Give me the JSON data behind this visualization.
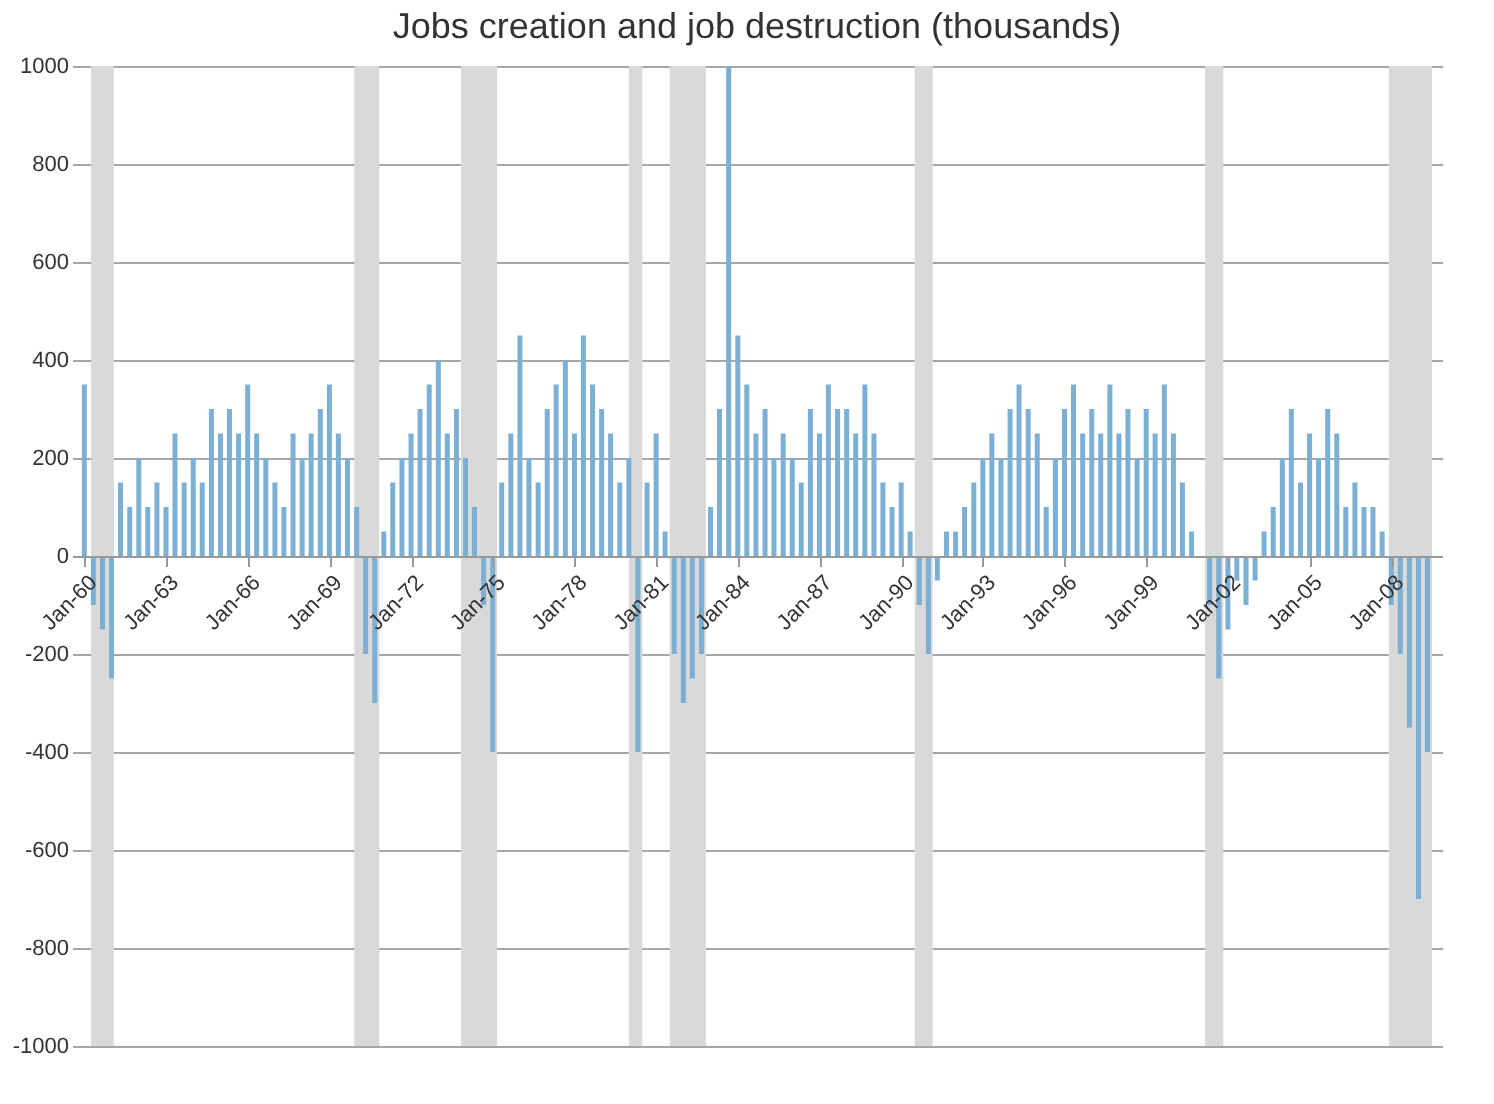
{
  "chart_data": {
    "type": "bar",
    "title": "Jobs creation and job destruction (thousands)",
    "x": [
      "1960-01",
      "1960-05",
      "1960-09",
      "1961-01",
      "1961-05",
      "1961-09",
      "1962-01",
      "1962-05",
      "1962-09",
      "1963-01",
      "1963-05",
      "1963-09",
      "1964-01",
      "1964-05",
      "1964-09",
      "1965-01",
      "1965-05",
      "1965-09",
      "1966-01",
      "1966-05",
      "1966-09",
      "1967-01",
      "1967-05",
      "1967-09",
      "1968-01",
      "1968-05",
      "1968-09",
      "1969-01",
      "1969-05",
      "1969-09",
      "1970-01",
      "1970-05",
      "1970-09",
      "1971-01",
      "1971-05",
      "1971-09",
      "1972-01",
      "1972-05",
      "1972-09",
      "1973-01",
      "1973-05",
      "1973-09",
      "1974-01",
      "1974-05",
      "1974-09",
      "1975-01",
      "1975-05",
      "1975-09",
      "1976-01",
      "1976-05",
      "1976-09",
      "1977-01",
      "1977-05",
      "1977-09",
      "1978-01",
      "1978-05",
      "1978-09",
      "1979-01",
      "1979-05",
      "1979-09",
      "1980-01",
      "1980-05",
      "1980-09",
      "1981-01",
      "1981-05",
      "1981-09",
      "1982-01",
      "1982-05",
      "1982-09",
      "1983-01",
      "1983-05",
      "1983-09",
      "1984-01",
      "1984-05",
      "1984-09",
      "1985-01",
      "1985-05",
      "1985-09",
      "1986-01",
      "1986-05",
      "1986-09",
      "1987-01",
      "1987-05",
      "1987-09",
      "1988-01",
      "1988-05",
      "1988-09",
      "1989-01",
      "1989-05",
      "1989-09",
      "1990-01",
      "1990-05",
      "1990-09",
      "1991-01",
      "1991-05",
      "1991-09",
      "1992-01",
      "1992-05",
      "1992-09",
      "1993-01",
      "1993-05",
      "1993-09",
      "1994-01",
      "1994-05",
      "1994-09",
      "1995-01",
      "1995-05",
      "1995-09",
      "1996-01",
      "1996-05",
      "1996-09",
      "1997-01",
      "1997-05",
      "1997-09",
      "1998-01",
      "1998-05",
      "1998-09",
      "1999-01",
      "1999-05",
      "1999-09",
      "2000-01",
      "2000-05",
      "2000-09",
      "2001-01",
      "2001-05",
      "2001-09",
      "2002-01",
      "2002-05",
      "2002-09",
      "2003-01",
      "2003-05",
      "2003-09",
      "2004-01",
      "2004-05",
      "2004-09",
      "2005-01",
      "2005-05",
      "2005-09",
      "2006-01",
      "2006-05",
      "2006-09",
      "2007-01",
      "2007-05",
      "2007-09",
      "2008-01",
      "2008-05",
      "2008-09",
      "2009-01",
      "2009-05"
    ],
    "values": [
      350,
      -100,
      -150,
      -250,
      150,
      100,
      200,
      100,
      150,
      100,
      250,
      150,
      200,
      150,
      300,
      250,
      300,
      250,
      350,
      250,
      200,
      150,
      100,
      250,
      200,
      250,
      300,
      350,
      250,
      200,
      100,
      -200,
      -300,
      50,
      150,
      200,
      250,
      300,
      350,
      400,
      250,
      300,
      200,
      100,
      -100,
      -400,
      150,
      250,
      450,
      200,
      150,
      300,
      350,
      400,
      250,
      450,
      350,
      300,
      250,
      150,
      200,
      -400,
      150,
      250,
      50,
      -200,
      -300,
      -250,
      -200,
      100,
      300,
      1000,
      450,
      350,
      250,
      300,
      200,
      250,
      200,
      150,
      300,
      250,
      350,
      300,
      300,
      250,
      350,
      250,
      150,
      100,
      150,
      50,
      -100,
      -200,
      -50,
      50,
      50,
      100,
      150,
      200,
      250,
      200,
      300,
      350,
      300,
      250,
      100,
      200,
      300,
      350,
      250,
      300,
      250,
      350,
      250,
      300,
      200,
      300,
      250,
      350,
      250,
      150,
      50,
      0,
      -100,
      -250,
      -150,
      -50,
      -100,
      -50,
      50,
      100,
      200,
      300,
      150,
      250,
      200,
      300,
      250,
      100,
      150,
      100,
      100,
      50,
      -100,
      -200,
      -350,
      -700,
      -400
    ],
    "color": "#7bafd4",
    "xlim": [
      "1959-12",
      "2009-07"
    ],
    "xticks": [
      {
        "value": "1960-01",
        "label": "Jan-60"
      },
      {
        "value": "1963-01",
        "label": "Jan-63"
      },
      {
        "value": "1966-01",
        "label": "Jan-66"
      },
      {
        "value": "1969-01",
        "label": "Jan-69"
      },
      {
        "value": "1972-01",
        "label": "Jan-72"
      },
      {
        "value": "1975-01",
        "label": "Jan-75"
      },
      {
        "value": "1978-01",
        "label": "Jan-78"
      },
      {
        "value": "1981-01",
        "label": "Jan-81"
      },
      {
        "value": "1984-01",
        "label": "Jan-84"
      },
      {
        "value": "1987-01",
        "label": "Jan-87"
      },
      {
        "value": "1990-01",
        "label": "Jan-90"
      },
      {
        "value": "1993-01",
        "label": "Jan-93"
      },
      {
        "value": "1996-01",
        "label": "Jan-96"
      },
      {
        "value": "1999-01",
        "label": "Jan-99"
      },
      {
        "value": "2002-01",
        "label": "Jan-02"
      },
      {
        "value": "2005-01",
        "label": "Jan-05"
      },
      {
        "value": "2008-01",
        "label": "Jan-08"
      }
    ],
    "ylim": [
      -1000,
      1000
    ],
    "yticks": [
      -1000,
      -800,
      -600,
      -400,
      -200,
      0,
      200,
      400,
      600,
      800,
      1000
    ],
    "bands": [
      {
        "axis": "x",
        "from": "1960-04",
        "to": "1961-02",
        "color": "#d9d9d9"
      },
      {
        "axis": "x",
        "from": "1969-12",
        "to": "1970-11",
        "color": "#d9d9d9"
      },
      {
        "axis": "x",
        "from": "1973-11",
        "to": "1975-03",
        "color": "#d9d9d9"
      },
      {
        "axis": "x",
        "from": "1980-01",
        "to": "1980-07",
        "color": "#d9d9d9"
      },
      {
        "axis": "x",
        "from": "1981-07",
        "to": "1982-11",
        "color": "#d9d9d9"
      },
      {
        "axis": "x",
        "from": "1990-07",
        "to": "1991-03",
        "color": "#d9d9d9"
      },
      {
        "axis": "x",
        "from": "2001-03",
        "to": "2001-11",
        "color": "#d9d9d9"
      },
      {
        "axis": "x",
        "from": "2007-12",
        "to": "2009-07",
        "color": "#d9d9d9"
      }
    ],
    "grid": "y"
  }
}
